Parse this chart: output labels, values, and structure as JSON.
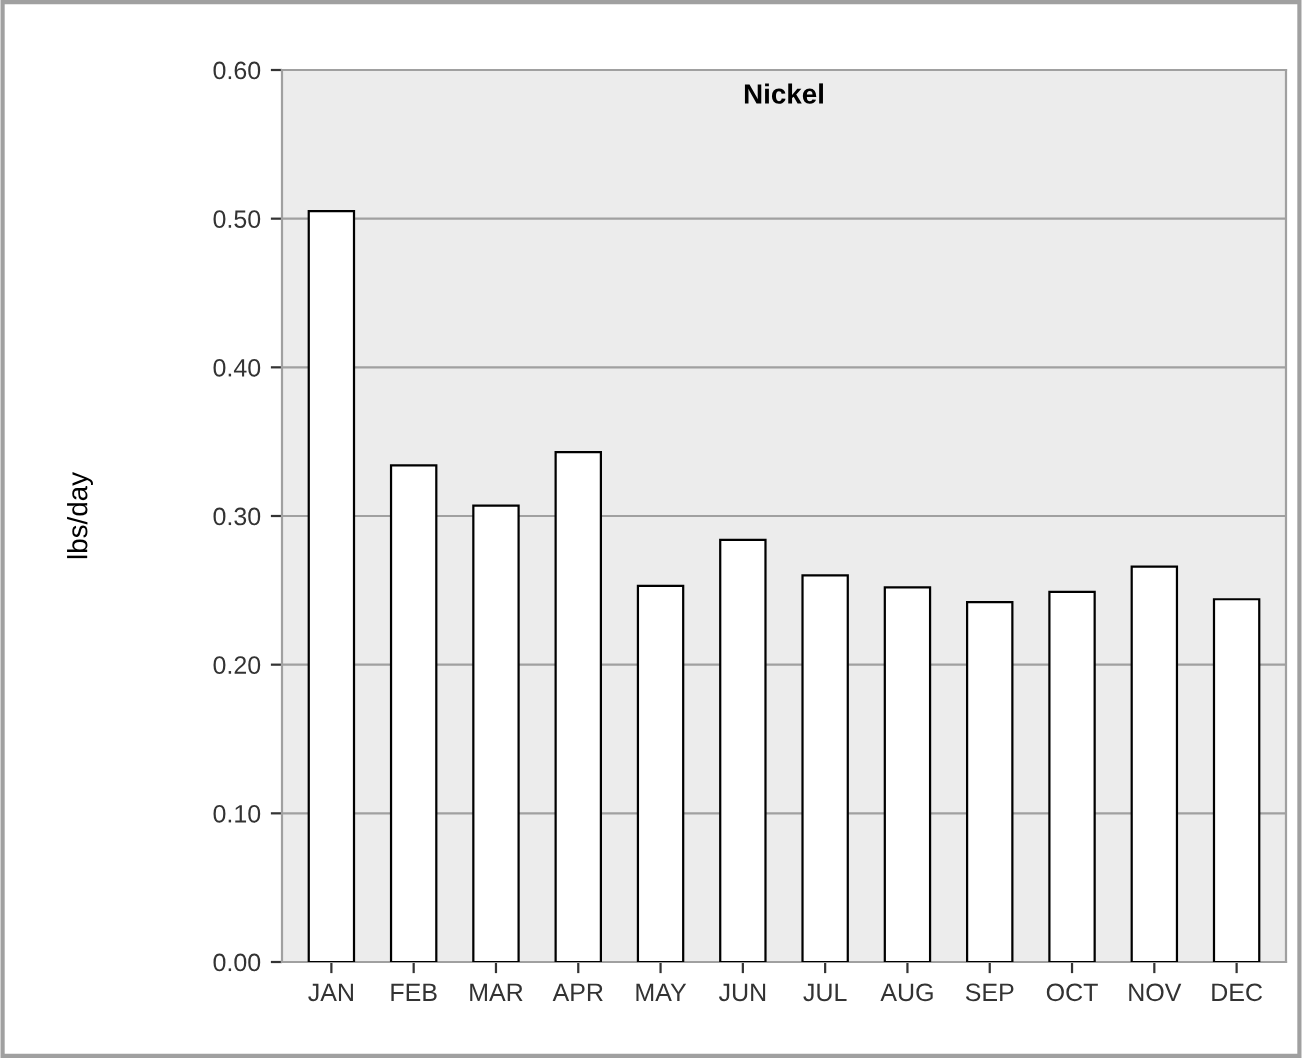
{
  "chart_data": {
    "type": "bar",
    "title": "Nickel",
    "ylabel": "lbs/day",
    "categories": [
      "JAN",
      "FEB",
      "MAR",
      "APR",
      "MAY",
      "JUN",
      "JUL",
      "AUG",
      "SEP",
      "OCT",
      "NOV",
      "DEC"
    ],
    "values": [
      0.505,
      0.334,
      0.307,
      0.343,
      0.253,
      0.284,
      0.26,
      0.252,
      0.242,
      0.249,
      0.266,
      0.244
    ],
    "color": "#ffffff",
    "ylim": [
      0,
      0.6
    ],
    "yticks": [
      {
        "value": 0,
        "label": "0.00"
      },
      {
        "value": 0.1,
        "label": "0.10"
      },
      {
        "value": 0.2,
        "label": "0.20"
      },
      {
        "value": 0.3,
        "label": "0.30"
      },
      {
        "value": 0.4,
        "label": "0.40"
      },
      {
        "value": 0.5,
        "label": "0.50"
      },
      {
        "value": 0.6,
        "label": "0.60"
      }
    ],
    "grid": "y"
  }
}
